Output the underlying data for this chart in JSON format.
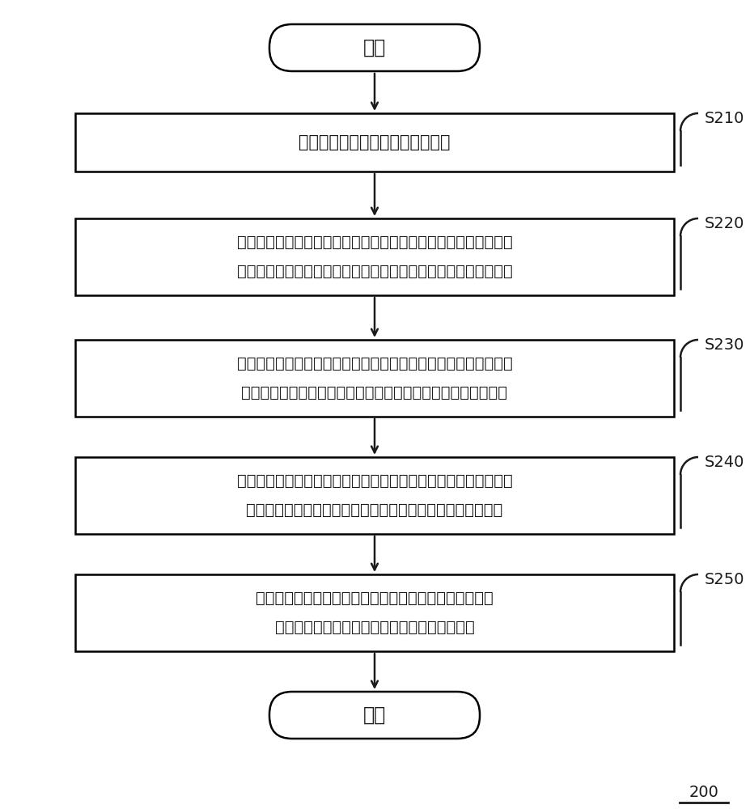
{
  "bg_color": "#ffffff",
  "line_color": "#1a1a1a",
  "text_color": "#1a1a1a",
  "figure_number": "200",
  "start_label": "开始",
  "end_label": "结束",
  "steps": [
    {
      "id": "S210",
      "label_lines": [
        "采集特定分子类型的多条分子数据"
      ],
      "step_label": "S210",
      "n_lines": 1
    },
    {
      "id": "S220",
      "label_lines": [
        "从特征类型集合、特征工程集合和预测模型集合中任选一个或多个",
        "特征类型、特征工程和预测模型进行遍历组合，得到多种组合方式"
      ],
      "step_label": "S220",
      "n_lines": 2
    },
    {
      "id": "S230",
      "label_lines": [
        "对于每种组合方式，获取该组合方式中的特征类型所对应的特征数",
        "据，采用对应的特征工程对该特征数据进行处理，得到样本输入"
      ],
      "step_label": "S230",
      "n_lines": 2
    },
    {
      "id": "S240",
      "label_lines": [
        "以性能数据为样本标签，以预测的性能値为样本输出，对该组合方",
        "式中的预测模型进行训练，得到训练后的模型及模型评价指标"
      ],
      "step_label": "S240",
      "n_lines": 2
    },
    {
      "id": "S250",
      "label_lines": [
        "根据模型评价指标选取特征类型、特征工程和预测模型的",
        "最优组合方式，用于进行同类型分子的性质预测"
      ],
      "step_label": "S250",
      "n_lines": 2
    }
  ]
}
